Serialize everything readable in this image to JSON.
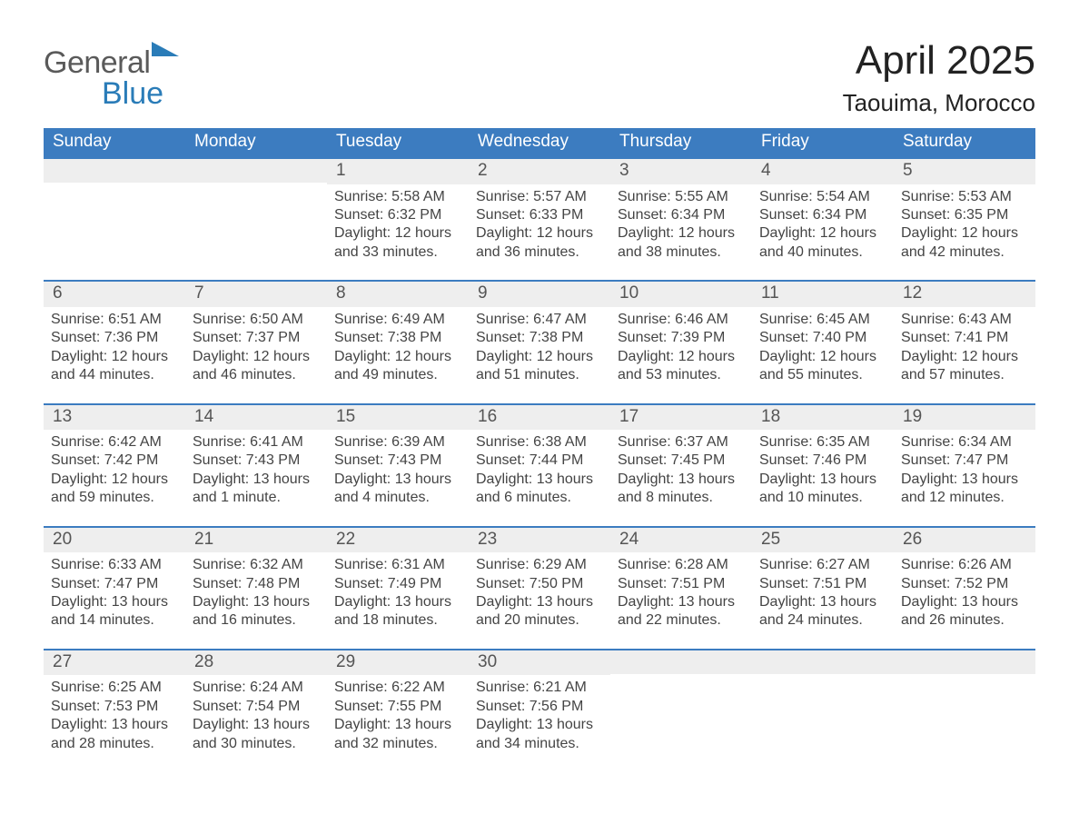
{
  "brand": {
    "part1": "General",
    "part2": "Blue"
  },
  "title": {
    "month": "April 2025",
    "location": "Taouima, Morocco"
  },
  "colors": {
    "header_blue": "#3c7cc0",
    "logo_blue": "#2a7cb8",
    "daynum_bg": "#eeeeee",
    "row_border": "#3c7cc0",
    "background": "#ffffff",
    "text": "#333333"
  },
  "typography": {
    "month_fontsize_pt": 33,
    "location_fontsize_pt": 20,
    "header_fontsize_pt": 14,
    "body_fontsize_pt": 12,
    "font_family": "Segoe UI / Arial"
  },
  "labels": {
    "sunrise": "Sunrise",
    "sunset": "Sunset",
    "daylight": "Daylight"
  },
  "weekdays": [
    "Sunday",
    "Monday",
    "Tuesday",
    "Wednesday",
    "Thursday",
    "Friday",
    "Saturday"
  ],
  "weeks": [
    [
      null,
      null,
      {
        "day": 1,
        "sunrise": "5:58 AM",
        "sunset": "6:32 PM",
        "daylight": "12 hours and 33 minutes."
      },
      {
        "day": 2,
        "sunrise": "5:57 AM",
        "sunset": "6:33 PM",
        "daylight": "12 hours and 36 minutes."
      },
      {
        "day": 3,
        "sunrise": "5:55 AM",
        "sunset": "6:34 PM",
        "daylight": "12 hours and 38 minutes."
      },
      {
        "day": 4,
        "sunrise": "5:54 AM",
        "sunset": "6:34 PM",
        "daylight": "12 hours and 40 minutes."
      },
      {
        "day": 5,
        "sunrise": "5:53 AM",
        "sunset": "6:35 PM",
        "daylight": "12 hours and 42 minutes."
      }
    ],
    [
      {
        "day": 6,
        "sunrise": "6:51 AM",
        "sunset": "7:36 PM",
        "daylight": "12 hours and 44 minutes."
      },
      {
        "day": 7,
        "sunrise": "6:50 AM",
        "sunset": "7:37 PM",
        "daylight": "12 hours and 46 minutes."
      },
      {
        "day": 8,
        "sunrise": "6:49 AM",
        "sunset": "7:38 PM",
        "daylight": "12 hours and 49 minutes."
      },
      {
        "day": 9,
        "sunrise": "6:47 AM",
        "sunset": "7:38 PM",
        "daylight": "12 hours and 51 minutes."
      },
      {
        "day": 10,
        "sunrise": "6:46 AM",
        "sunset": "7:39 PM",
        "daylight": "12 hours and 53 minutes."
      },
      {
        "day": 11,
        "sunrise": "6:45 AM",
        "sunset": "7:40 PM",
        "daylight": "12 hours and 55 minutes."
      },
      {
        "day": 12,
        "sunrise": "6:43 AM",
        "sunset": "7:41 PM",
        "daylight": "12 hours and 57 minutes."
      }
    ],
    [
      {
        "day": 13,
        "sunrise": "6:42 AM",
        "sunset": "7:42 PM",
        "daylight": "12 hours and 59 minutes."
      },
      {
        "day": 14,
        "sunrise": "6:41 AM",
        "sunset": "7:43 PM",
        "daylight": "13 hours and 1 minute."
      },
      {
        "day": 15,
        "sunrise": "6:39 AM",
        "sunset": "7:43 PM",
        "daylight": "13 hours and 4 minutes."
      },
      {
        "day": 16,
        "sunrise": "6:38 AM",
        "sunset": "7:44 PM",
        "daylight": "13 hours and 6 minutes."
      },
      {
        "day": 17,
        "sunrise": "6:37 AM",
        "sunset": "7:45 PM",
        "daylight": "13 hours and 8 minutes."
      },
      {
        "day": 18,
        "sunrise": "6:35 AM",
        "sunset": "7:46 PM",
        "daylight": "13 hours and 10 minutes."
      },
      {
        "day": 19,
        "sunrise": "6:34 AM",
        "sunset": "7:47 PM",
        "daylight": "13 hours and 12 minutes."
      }
    ],
    [
      {
        "day": 20,
        "sunrise": "6:33 AM",
        "sunset": "7:47 PM",
        "daylight": "13 hours and 14 minutes."
      },
      {
        "day": 21,
        "sunrise": "6:32 AM",
        "sunset": "7:48 PM",
        "daylight": "13 hours and 16 minutes."
      },
      {
        "day": 22,
        "sunrise": "6:31 AM",
        "sunset": "7:49 PM",
        "daylight": "13 hours and 18 minutes."
      },
      {
        "day": 23,
        "sunrise": "6:29 AM",
        "sunset": "7:50 PM",
        "daylight": "13 hours and 20 minutes."
      },
      {
        "day": 24,
        "sunrise": "6:28 AM",
        "sunset": "7:51 PM",
        "daylight": "13 hours and 22 minutes."
      },
      {
        "day": 25,
        "sunrise": "6:27 AM",
        "sunset": "7:51 PM",
        "daylight": "13 hours and 24 minutes."
      },
      {
        "day": 26,
        "sunrise": "6:26 AM",
        "sunset": "7:52 PM",
        "daylight": "13 hours and 26 minutes."
      }
    ],
    [
      {
        "day": 27,
        "sunrise": "6:25 AM",
        "sunset": "7:53 PM",
        "daylight": "13 hours and 28 minutes."
      },
      {
        "day": 28,
        "sunrise": "6:24 AM",
        "sunset": "7:54 PM",
        "daylight": "13 hours and 30 minutes."
      },
      {
        "day": 29,
        "sunrise": "6:22 AM",
        "sunset": "7:55 PM",
        "daylight": "13 hours and 32 minutes."
      },
      {
        "day": 30,
        "sunrise": "6:21 AM",
        "sunset": "7:56 PM",
        "daylight": "13 hours and 34 minutes."
      },
      null,
      null,
      null
    ]
  ]
}
